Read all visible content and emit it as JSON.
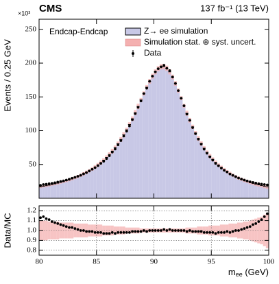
{
  "chart_data": {
    "type": "histogram",
    "experiment": "CMS",
    "lumi": "137 fb⁻¹ (13 TeV)",
    "annotation": "Endcap-Endcap",
    "ylabel": "Events / 0.25 GeV",
    "y_multiplier": "×10³",
    "xlabel": "m",
    "xlabel_sub": "ee",
    "xlabel_unit": " (GeV)",
    "xlim": [
      80,
      100
    ],
    "xticks": [
      80,
      85,
      90,
      95,
      100
    ],
    "ylim": [
      0,
      265
    ],
    "yticks": [
      50,
      100,
      150,
      200,
      250
    ],
    "bins": [
      80,
      80.25,
      80.5,
      80.75,
      81,
      81.25,
      81.5,
      81.75,
      82,
      82.25,
      82.5,
      82.75,
      83,
      83.25,
      83.5,
      83.75,
      84,
      84.25,
      84.5,
      84.75,
      85,
      85.25,
      85.5,
      85.75,
      86,
      86.25,
      86.5,
      86.75,
      87,
      87.25,
      87.5,
      87.75,
      88,
      88.25,
      88.5,
      88.75,
      89,
      89.25,
      89.5,
      89.75,
      90,
      90.25,
      90.5,
      90.75,
      91,
      91.25,
      91.5,
      91.75,
      92,
      92.25,
      92.5,
      92.75,
      93,
      93.25,
      93.5,
      93.75,
      94,
      94.25,
      94.5,
      94.75,
      95,
      95.25,
      95.5,
      95.75,
      96,
      96.25,
      96.5,
      96.75,
      97,
      97.25,
      97.5,
      97.75,
      98,
      98.25,
      98.5,
      98.75,
      99,
      99.25,
      99.5,
      99.75,
      100
    ],
    "series": [
      {
        "name": "Z→ ee simulation",
        "color": "#c8c8e6",
        "values": [
          17.0,
          17.8,
          18.6,
          19.4,
          20.3,
          21.3,
          22.3,
          23.5,
          24.6,
          25.9,
          27.3,
          28.8,
          30.4,
          32.2,
          34.0,
          36.1,
          38.3,
          40.7,
          43.3,
          46.2,
          49.3,
          52.7,
          56.4,
          60.4,
          64.8,
          69.7,
          75.0,
          80.7,
          87.0,
          93.9,
          101.3,
          109.2,
          117.6,
          126.6,
          135.9,
          145.5,
          155.0,
          164.4,
          173.1,
          180.7,
          187.1,
          191.8,
          194.5,
          194.9,
          192.4,
          187.1,
          179.4,
          169.9,
          159.3,
          148.1,
          136.9,
          125.8,
          115.4,
          105.7,
          96.6,
          88.4,
          80.9,
          74.1,
          68.0,
          62.5,
          57.6,
          53.1,
          49.1,
          45.5,
          42.2,
          39.3,
          36.6,
          34.2,
          31.9,
          29.9,
          28.1,
          26.4,
          24.9,
          23.4,
          22.1,
          20.9,
          19.8,
          18.8,
          17.8,
          16.9
        ]
      },
      {
        "name": "Data",
        "color": "#000000",
        "values": [
          19.2,
          20.3,
          20.8,
          21.5,
          22.1,
          23.0,
          23.9,
          24.9,
          25.8,
          26.9,
          28.1,
          29.7,
          31.0,
          32.5,
          34.0,
          36.1,
          37.9,
          40.3,
          42.9,
          45.3,
          48.3,
          51.6,
          54.7,
          58.6,
          62.9,
          68.3,
          72.8,
          79.1,
          85.3,
          92.0,
          99.3,
          107.0,
          116.4,
          125.3,
          134.5,
          144.0,
          155.0,
          162.8,
          173.1,
          180.7,
          187.1,
          191.8,
          194.5,
          196.8,
          192.4,
          189.0,
          179.4,
          169.9,
          159.3,
          148.1,
          136.9,
          124.5,
          115.4,
          104.6,
          95.6,
          87.5,
          80.1,
          72.6,
          66.6,
          61.3,
          56.4,
          51.5,
          48.1,
          44.6,
          41.4,
          38.9,
          35.9,
          33.9,
          31.9,
          29.9,
          28.4,
          26.9,
          25.6,
          24.3,
          23.4,
          22.4,
          21.6,
          20.9,
          20.3,
          19.8
        ]
      }
    ],
    "uncertainty": {
      "name": "Simulation stat. ⊕ syst. uncert.",
      "color": "#f4b0b0",
      "values": [
        0.1,
        0.1,
        0.1,
        0.09,
        0.09,
        0.09,
        0.09,
        0.08,
        0.08,
        0.08,
        0.08,
        0.08,
        0.07,
        0.07,
        0.07,
        0.07,
        0.07,
        0.06,
        0.06,
        0.06,
        0.06,
        0.06,
        0.05,
        0.05,
        0.05,
        0.05,
        0.04,
        0.04,
        0.04,
        0.04,
        0.03,
        0.03,
        0.03,
        0.03,
        0.03,
        0.02,
        0.02,
        0.02,
        0.02,
        0.02,
        0.02,
        0.02,
        0.02,
        0.02,
        0.02,
        0.02,
        0.02,
        0.02,
        0.02,
        0.02,
        0.02,
        0.03,
        0.03,
        0.03,
        0.03,
        0.04,
        0.04,
        0.04,
        0.04,
        0.05,
        0.05,
        0.05,
        0.05,
        0.06,
        0.06,
        0.06,
        0.07,
        0.07,
        0.07,
        0.08,
        0.08,
        0.09,
        0.09,
        0.1,
        0.11,
        0.12,
        0.13,
        0.14,
        0.16,
        0.18
      ]
    },
    "ratio": {
      "ylabel": "Data/MC",
      "ylim": [
        0.75,
        1.25
      ],
      "grid": true,
      "yticks": [
        0.8,
        0.9,
        {
          "value": 1,
          "label": "1.0"
        },
        1.1,
        1.2
      ],
      "values": [
        1.13,
        1.14,
        1.12,
        1.11,
        1.09,
        1.08,
        1.07,
        1.06,
        1.05,
        1.04,
        1.03,
        1.03,
        1.02,
        1.01,
        1.0,
        1.0,
        0.99,
        0.99,
        0.99,
        0.98,
        0.98,
        0.98,
        0.97,
        0.97,
        0.97,
        0.98,
        0.97,
        0.98,
        0.98,
        0.98,
        0.98,
        0.98,
        0.99,
        0.99,
        0.99,
        0.99,
        1.0,
        0.99,
        1.0,
        1.0,
        1.0,
        1.0,
        1.0,
        1.01,
        1.0,
        1.01,
        1.0,
        1.0,
        1.0,
        1.0,
        1.0,
        0.99,
        1.0,
        0.99,
        0.99,
        0.99,
        0.99,
        0.98,
        0.98,
        0.98,
        0.98,
        0.97,
        0.98,
        0.98,
        0.98,
        0.99,
        0.98,
        0.99,
        1.0,
        1.0,
        1.01,
        1.02,
        1.03,
        1.04,
        1.06,
        1.07,
        1.09,
        1.11,
        1.14,
        1.17
      ]
    }
  }
}
